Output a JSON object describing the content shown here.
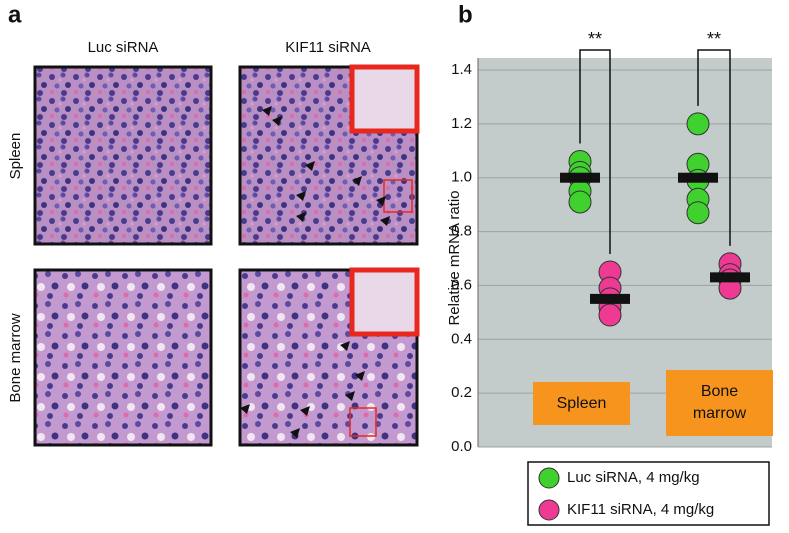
{
  "panel_a": {
    "label": "a",
    "columns": [
      "Luc siRNA",
      "KIF11 siRNA"
    ],
    "rows": [
      "Spleen",
      "Bone marrow"
    ]
  },
  "chart_data": {
    "type": "dot",
    "panel_label": "b",
    "y_label": "Relative mRNA ratio",
    "categories": [
      "Spleen",
      "Bone marrow"
    ],
    "series": [
      {
        "name": "Luc siRNA, 4 mg/kg",
        "color": "#3fd12e",
        "values": [
          [
            1.06,
            1.02,
            1.0,
            0.95,
            0.91
          ],
          [
            1.2,
            1.05,
            0.99,
            0.92,
            0.87
          ]
        ],
        "means": [
          1.0,
          1.0
        ]
      },
      {
        "name": "KIF11 siRNA, 4 mg/kg",
        "color": "#ee3a93",
        "values": [
          [
            0.65,
            0.59,
            0.55,
            0.52,
            0.49
          ],
          [
            0.68,
            0.64,
            0.62,
            0.59
          ]
        ],
        "means": [
          0.55,
          0.63
        ]
      }
    ],
    "annotations": [
      "**",
      "**"
    ],
    "ylim": [
      0,
      1.4
    ],
    "yticks": [
      {
        "value": 0,
        "label": "0.0"
      },
      0.2,
      0.4,
      0.6,
      0.8,
      {
        "value": 1,
        "label": "1.0"
      },
      1.2,
      1.4
    ],
    "grid": true
  }
}
